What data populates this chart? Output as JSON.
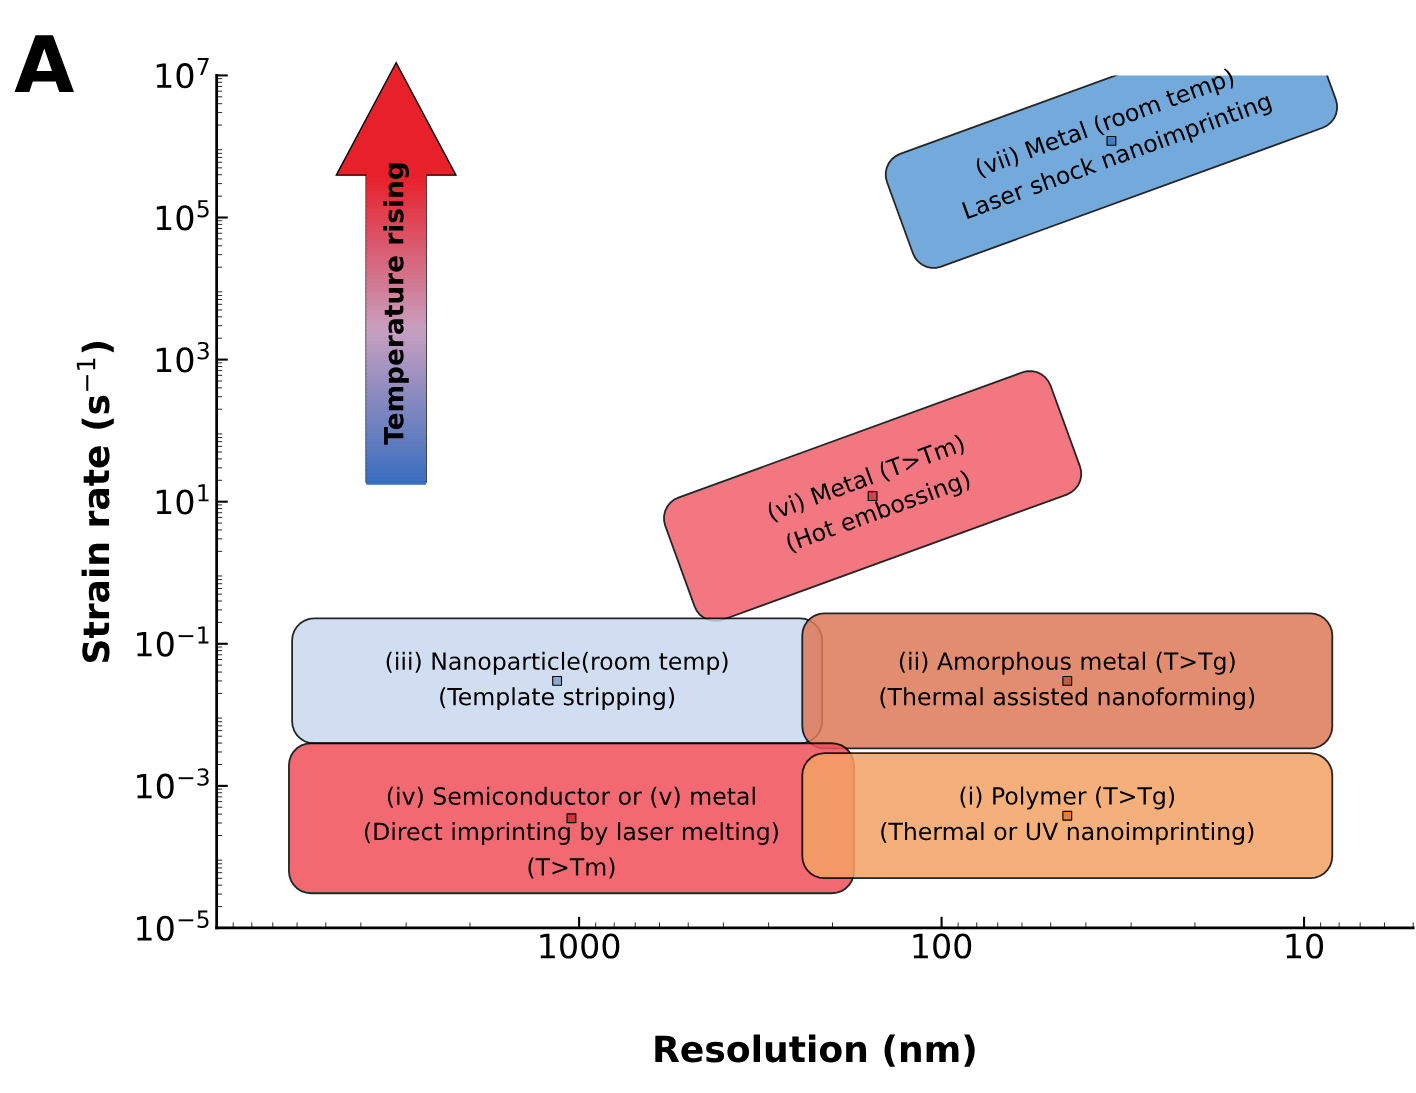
{
  "chart_data": {
    "type": "scatter",
    "title": "A",
    "xlabel": "Resolution (nm)",
    "ylabel": "Strain rate (s$^{−1}$)",
    "log": "xy",
    "xlim": [
      10000,
      5
    ],
    "xticks": [
      1000,
      100,
      10
    ],
    "ylim": [
      1e-05,
      10000000.0
    ],
    "yticks": [
      {
        "value": 1e-05,
        "label": "10$^{−5}$"
      },
      {
        "value": 0.001,
        "label": "10$^{−3}$"
      },
      {
        "value": 0.1,
        "label": "10$^{−1}$"
      },
      {
        "value": 10,
        "label": "10$^{1}$"
      },
      {
        "value": 1000,
        "label": "10$^{3}$"
      },
      {
        "value": 100000,
        "label": "10$^{5}$"
      },
      {
        "value": 10000000,
        "label": "10$^{7}$"
      }
    ],
    "marker": "square",
    "series": [
      {
        "x": [
          34,
          155,
          1150,
          45,
          1050,
          45
        ],
        "values": [
          1200000,
          12,
          0.03,
          0.03,
          0.00035,
          0.00038
        ],
        "colors": [
          "#3f7fbf",
          "#d8404a",
          "#8fa8cc",
          "#c05a38",
          "#d83038",
          "#e08040"
        ]
      }
    ],
    "colors": [
      "#5b9bd5",
      "#f0606a",
      "#c9d9ef",
      "#df7a58",
      "#f0505a",
      "#f4a263"
    ],
    "annotations": [
      {
        "text": "(vii) Metal (room temp)\nLaser shock nanoimprinting",
        "x": 34,
        "y": 1200000
      },
      {
        "text": "(vi) Metal (T>Tm)\n(Hot embossing)",
        "x": 155,
        "y": 12
      },
      {
        "text": "(iii) Nanoparticle(room temp)\n(Template stripping)",
        "x": 1150,
        "y": 0.03
      },
      {
        "text": "(ii) Amorphous metal (T>Tg)\n(Thermal assisted nanoforming)",
        "x": 45,
        "y": 0.03
      },
      {
        "text": "(iv) Semiconductor or (v) metal\n(Direct imprinting by laser melting)\n(T>Tm)",
        "x": 1050,
        "y": 0.00035
      },
      {
        "text": "(i) Polymer (T>Tg)\n(Thermal or UV nanoimprinting)",
        "x": 45,
        "y": 0.00038
      },
      "Temperature rising"
    ]
  }
}
